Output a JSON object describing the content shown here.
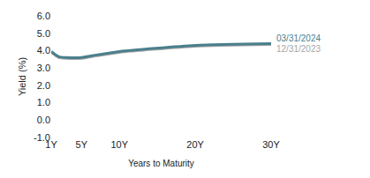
{
  "chart_data": {
    "type": "line",
    "x_label": "Years to Maturity",
    "y_label": "Yield (%)",
    "x": [
      1,
      2,
      3,
      5,
      7,
      10,
      20,
      30
    ],
    "series": [
      {
        "name": "03/31/2024",
        "color": "#4a7f8c",
        "values": [
          3.95,
          3.65,
          3.6,
          3.6,
          3.75,
          3.95,
          4.3,
          4.4
        ]
      },
      {
        "name": "12/31/2023",
        "color": "#a6a6a6",
        "values": [
          3.9,
          3.6,
          3.55,
          3.55,
          3.7,
          3.9,
          4.25,
          4.35
        ]
      }
    ],
    "xlim": [
      1,
      30
    ],
    "xticks": [
      {
        "value": 1,
        "label": "1Y"
      },
      {
        "value": 5,
        "label": "5Y"
      },
      {
        "value": 10,
        "label": "10Y"
      },
      {
        "value": 20,
        "label": "20Y"
      },
      {
        "value": 30,
        "label": "30Y"
      }
    ],
    "ylim": [
      -1,
      6
    ],
    "yticks": [
      {
        "value": -1,
        "label": "-1.0"
      },
      {
        "value": 0,
        "label": "0.0"
      },
      {
        "value": 1,
        "label": "1.0"
      },
      {
        "value": 2,
        "label": "2.0"
      },
      {
        "value": 3,
        "label": "3.0"
      },
      {
        "value": 4,
        "label": "4.0"
      },
      {
        "value": 5,
        "label": "5.0"
      },
      {
        "value": 6,
        "label": "6.0"
      }
    ],
    "grid": false
  }
}
